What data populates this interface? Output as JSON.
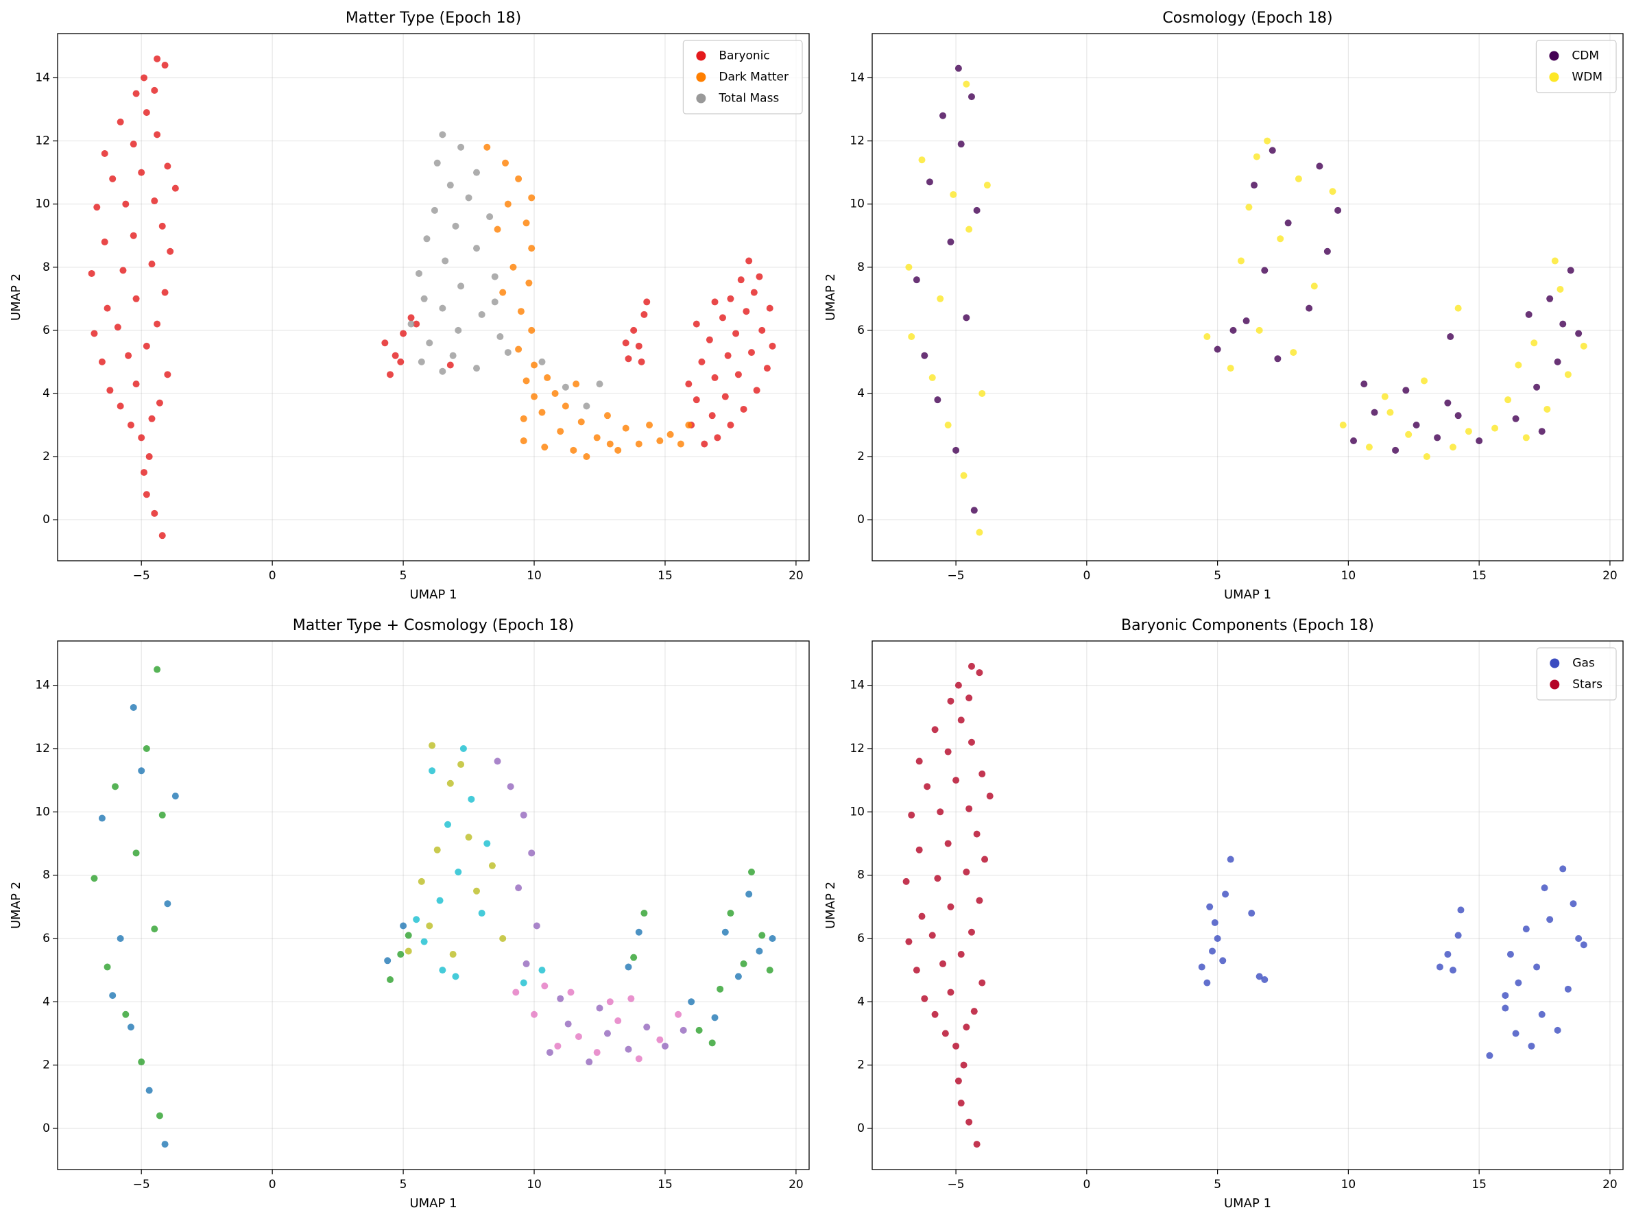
{
  "chart_data": [
    {
      "type": "scatter",
      "title": "Matter Type (Epoch 18)",
      "xlabel": "UMAP 1",
      "ylabel": "UMAP 2",
      "xlim": [
        -8.2,
        20.5
      ],
      "ylim": [
        -1.3,
        15.4
      ],
      "xticks": [
        {
          "value": -5,
          "label": "−5"
        },
        0,
        5,
        10,
        15,
        20
      ],
      "yticks": [
        0,
        2,
        4,
        6,
        8,
        10,
        12,
        14
      ],
      "grid": true,
      "legend": "upper right",
      "series": [
        {
          "name": "Baryonic",
          "color": "#e41a1c",
          "x": [
            -4.2,
            -4.5,
            -4.8,
            -4.9,
            -4.7,
            -5.0,
            -5.4,
            -4.6,
            -5.8,
            -4.3,
            -6.2,
            -5.2,
            -4.0,
            -6.5,
            -5.5,
            -4.8,
            -6.8,
            -5.9,
            -4.4,
            -6.3,
            -5.2,
            -4.1,
            -6.9,
            -5.7,
            -4.6,
            -3.9,
            -6.4,
            -5.3,
            -4.2,
            -6.7,
            -5.6,
            -4.5,
            -3.7,
            -6.1,
            -5.0,
            -4.0,
            -6.4,
            -5.3,
            -4.4,
            -5.8,
            -4.8,
            -5.2,
            -4.5,
            -4.9,
            -4.4,
            -4.1,
            16.5,
            17.0,
            16.0,
            17.5,
            16.8,
            18.0,
            16.2,
            17.3,
            18.5,
            15.9,
            16.9,
            17.8,
            18.9,
            16.4,
            17.4,
            18.3,
            19.1,
            16.7,
            17.7,
            18.7,
            16.2,
            17.2,
            18.1,
            19.0,
            17.5,
            18.4,
            17.9,
            18.6,
            18.2,
            16.9,
            13.6,
            14.0,
            13.8,
            14.2,
            14.3,
            13.5,
            14.1,
            4.5,
            4.7,
            4.3,
            5.0,
            5.3,
            4.9,
            5.5,
            6.8
          ],
          "values": [
            -0.5,
            0.2,
            0.8,
            1.5,
            2.0,
            2.6,
            3.0,
            3.2,
            3.6,
            3.7,
            4.1,
            4.3,
            4.6,
            5.0,
            5.2,
            5.5,
            5.9,
            6.1,
            6.2,
            6.7,
            7.0,
            7.2,
            7.8,
            7.9,
            8.1,
            8.5,
            8.8,
            9.0,
            9.3,
            9.9,
            10.0,
            10.1,
            10.5,
            10.8,
            11.0,
            11.2,
            11.6,
            11.9,
            12.2,
            12.6,
            12.9,
            13.5,
            13.6,
            14.0,
            14.6,
            14.4,
            2.4,
            2.6,
            3.0,
            3.0,
            3.3,
            3.5,
            3.8,
            3.9,
            4.1,
            4.3,
            4.5,
            4.6,
            4.8,
            5.0,
            5.2,
            5.3,
            5.5,
            5.7,
            5.9,
            6.0,
            6.2,
            6.4,
            6.6,
            6.7,
            7.0,
            7.2,
            7.6,
            7.7,
            8.2,
            6.9,
            5.1,
            5.5,
            6.0,
            6.5,
            6.9,
            5.6,
            5.0,
            4.6,
            5.2,
            5.6,
            5.9,
            6.4,
            5.0,
            6.2,
            4.9
          ]
        },
        {
          "name": "Dark Matter",
          "color": "#ff7f00",
          "x": [
            8.2,
            8.9,
            9.4,
            9.9,
            9.0,
            9.7,
            8.6,
            9.9,
            9.2,
            9.8,
            8.8,
            9.5,
            9.9,
            9.4,
            10.0,
            9.7,
            10.5,
            10.0,
            9.6,
            10.3,
            9.6,
            10.4,
            11.0,
            11.2,
            11.8,
            12.0,
            12.4,
            12.8,
            13.2,
            13.5,
            14.0,
            14.4,
            14.8,
            15.2,
            15.6,
            15.9,
            11.5,
            12.9,
            10.8,
            11.6
          ],
          "values": [
            11.8,
            11.3,
            10.8,
            10.2,
            10.0,
            9.4,
            9.2,
            8.6,
            8.0,
            7.5,
            7.2,
            6.6,
            6.0,
            5.4,
            4.9,
            4.4,
            4.5,
            3.9,
            3.2,
            3.4,
            2.5,
            2.3,
            2.8,
            3.6,
            3.1,
            2.0,
            2.6,
            3.3,
            2.2,
            2.9,
            2.4,
            3.0,
            2.5,
            2.7,
            2.4,
            3.0,
            2.2,
            2.4,
            4.0,
            4.3
          ]
        },
        {
          "name": "Total Mass",
          "color": "#999999",
          "x": [
            6.5,
            7.2,
            6.3,
            7.8,
            6.8,
            7.5,
            6.2,
            8.3,
            7.0,
            5.9,
            7.8,
            6.6,
            5.6,
            8.5,
            7.2,
            5.8,
            6.5,
            8.0,
            5.3,
            7.1,
            6.0,
            8.7,
            6.9,
            5.7,
            7.8,
            9.0,
            6.5,
            8.5,
            11.2,
            12.5,
            10.3,
            12.0
          ],
          "values": [
            12.2,
            11.8,
            11.3,
            11.0,
            10.6,
            10.2,
            9.8,
            9.6,
            9.3,
            8.9,
            8.6,
            8.2,
            7.8,
            7.7,
            7.4,
            7.0,
            6.7,
            6.5,
            6.2,
            6.0,
            5.6,
            5.8,
            5.2,
            5.0,
            4.8,
            5.3,
            4.7,
            6.9,
            4.2,
            4.3,
            5.0,
            3.6
          ]
        }
      ]
    },
    {
      "type": "scatter",
      "title": "Cosmology (Epoch 18)",
      "xlabel": "UMAP 1",
      "ylabel": "UMAP 2",
      "xlim": [
        -8.2,
        20.5
      ],
      "ylim": [
        -1.3,
        15.4
      ],
      "xticks": [
        {
          "value": -5,
          "label": "−5"
        },
        0,
        5,
        10,
        15,
        20
      ],
      "yticks": [
        0,
        2,
        4,
        6,
        8,
        10,
        12,
        14
      ],
      "grid": true,
      "legend": "upper right",
      "series": [
        {
          "name": "CDM",
          "color": "#440154",
          "x": [
            -4.3,
            -5.0,
            -5.7,
            -6.2,
            -4.6,
            -6.5,
            -5.2,
            -4.2,
            -6.0,
            -4.8,
            -5.5,
            -4.4,
            -4.9,
            5.0,
            6.1,
            7.3,
            8.5,
            6.8,
            9.2,
            7.7,
            6.4,
            8.9,
            5.6,
            7.1,
            9.6,
            10.2,
            11.0,
            11.8,
            12.6,
            13.4,
            14.2,
            15.0,
            10.6,
            12.2,
            13.8,
            16.4,
            17.2,
            18.0,
            18.8,
            16.9,
            17.7,
            18.5,
            17.4,
            18.2,
            13.9
          ],
          "values": [
            0.3,
            2.2,
            3.8,
            5.2,
            6.4,
            7.6,
            8.8,
            9.8,
            10.7,
            11.9,
            12.8,
            13.4,
            14.3,
            5.4,
            6.3,
            5.1,
            6.7,
            7.9,
            8.5,
            9.4,
            10.6,
            11.2,
            6.0,
            11.7,
            9.8,
            2.5,
            3.4,
            2.2,
            3.0,
            2.6,
            3.3,
            2.5,
            4.3,
            4.1,
            3.7,
            3.2,
            4.2,
            5.0,
            5.9,
            6.5,
            7.0,
            7.9,
            2.8,
            6.2,
            5.8
          ]
        },
        {
          "name": "WDM",
          "color": "#fde725",
          "x": [
            -4.1,
            -4.7,
            -5.3,
            -5.9,
            -6.7,
            -4.0,
            -5.6,
            -6.8,
            -4.5,
            -5.1,
            -6.3,
            -3.8,
            -4.6,
            4.6,
            5.5,
            6.6,
            7.9,
            5.9,
            8.7,
            7.4,
            6.2,
            9.4,
            6.9,
            8.1,
            6.5,
            9.8,
            10.8,
            11.4,
            12.3,
            13.0,
            14.6,
            15.6,
            11.6,
            12.9,
            14.0,
            16.1,
            16.8,
            17.6,
            18.4,
            19.0,
            17.1,
            18.1,
            16.5,
            17.9,
            14.2
          ],
          "values": [
            -0.4,
            1.4,
            3.0,
            4.5,
            5.8,
            4.0,
            7.0,
            8.0,
            9.2,
            10.3,
            11.4,
            10.6,
            13.8,
            5.8,
            4.8,
            6.0,
            5.3,
            8.2,
            7.4,
            8.9,
            9.9,
            10.4,
            12.0,
            10.8,
            11.5,
            3.0,
            2.3,
            3.9,
            2.7,
            2.0,
            2.8,
            2.9,
            3.4,
            4.4,
            2.3,
            3.8,
            2.6,
            3.5,
            4.6,
            5.5,
            5.6,
            7.3,
            4.9,
            8.2,
            6.7
          ]
        }
      ]
    },
    {
      "type": "scatter",
      "title": "Matter Type + Cosmology (Epoch 18)",
      "xlabel": "UMAP 1",
      "ylabel": "UMAP 2",
      "xlim": [
        -8.2,
        20.5
      ],
      "ylim": [
        -1.3,
        15.4
      ],
      "xticks": [
        {
          "value": -5,
          "label": "−5"
        },
        0,
        5,
        10,
        15,
        20
      ],
      "yticks": [
        0,
        2,
        4,
        6,
        8,
        10,
        12,
        14
      ],
      "grid": true,
      "series": [
        {
          "color": "#2ca02c",
          "x": [
            -4.3,
            -5.0,
            -5.6,
            -6.3,
            -4.5,
            -6.8,
            -5.2,
            -4.2,
            -6.0,
            -4.8,
            -4.4,
            4.5,
            4.9,
            5.2,
            13.8,
            14.2,
            16.3,
            17.1,
            18.0,
            18.7,
            17.5,
            18.3,
            16.8,
            19.0
          ],
          "values": [
            0.4,
            2.1,
            3.6,
            5.1,
            6.3,
            7.9,
            8.7,
            9.9,
            10.8,
            12.0,
            14.5,
            4.7,
            5.5,
            6.1,
            5.4,
            6.8,
            3.1,
            4.4,
            5.2,
            6.1,
            6.8,
            8.1,
            2.7,
            5.0
          ]
        },
        {
          "color": "#1f77b4",
          "x": [
            -4.1,
            -4.7,
            -5.4,
            -6.1,
            -5.8,
            -4.0,
            -6.5,
            -5.0,
            -3.7,
            -5.3,
            4.4,
            5.0,
            13.6,
            14.0,
            16.0,
            16.9,
            17.8,
            18.6,
            17.3,
            18.2,
            19.1
          ],
          "values": [
            -0.5,
            1.2,
            3.2,
            4.2,
            6.0,
            7.1,
            9.8,
            11.3,
            10.5,
            13.3,
            5.3,
            6.4,
            5.1,
            6.2,
            4.0,
            3.5,
            4.8,
            5.6,
            6.2,
            7.4,
            6.0
          ]
        },
        {
          "color": "#17becf",
          "x": [
            5.8,
            6.4,
            7.1,
            6.7,
            7.6,
            6.1,
            7.3,
            8.0,
            6.5,
            5.5,
            7.0,
            9.6,
            10.3,
            8.2
          ],
          "values": [
            5.9,
            7.2,
            8.1,
            9.6,
            10.4,
            11.3,
            12.0,
            6.8,
            5.0,
            6.6,
            4.8,
            4.6,
            5.0,
            9.0
          ]
        },
        {
          "color": "#bcbd22",
          "x": [
            5.2,
            6.0,
            6.9,
            7.8,
            6.3,
            7.5,
            5.7,
            8.4,
            6.8,
            7.2,
            8.8,
            6.1
          ],
          "values": [
            5.6,
            6.4,
            5.5,
            7.5,
            8.8,
            9.2,
            7.8,
            8.3,
            10.9,
            11.5,
            6.0,
            12.1
          ]
        },
        {
          "color": "#9467bd",
          "x": [
            8.6,
            9.1,
            9.6,
            9.9,
            9.4,
            10.1,
            9.7,
            10.6,
            11.3,
            12.1,
            12.8,
            13.6,
            14.3,
            15.0,
            15.7,
            11.0,
            12.5
          ],
          "values": [
            11.6,
            10.8,
            9.9,
            8.7,
            7.6,
            6.4,
            5.2,
            2.4,
            3.3,
            2.1,
            3.0,
            2.5,
            3.2,
            2.6,
            3.1,
            4.1,
            3.8
          ]
        },
        {
          "color": "#e377c2",
          "x": [
            9.3,
            10.0,
            10.9,
            11.7,
            12.4,
            13.2,
            14.0,
            14.8,
            15.5,
            11.4,
            12.9,
            13.7,
            10.4
          ],
          "values": [
            4.3,
            3.6,
            2.6,
            2.9,
            2.4,
            3.4,
            2.2,
            2.8,
            3.6,
            4.3,
            4.0,
            4.1,
            4.5
          ]
        }
      ]
    },
    {
      "type": "scatter",
      "title": "Baryonic Components (Epoch 18)",
      "xlabel": "UMAP 1",
      "ylabel": "UMAP 2",
      "xlim": [
        -8.2,
        20.5
      ],
      "ylim": [
        -1.3,
        15.4
      ],
      "xticks": [
        {
          "value": -5,
          "label": "−5"
        },
        0,
        5,
        10,
        15,
        20
      ],
      "yticks": [
        0,
        2,
        4,
        6,
        8,
        10,
        12,
        14
      ],
      "grid": true,
      "legend": "upper right",
      "series": [
        {
          "name": "Gas",
          "color": "#3b4cc0",
          "x": [
            4.4,
            4.6,
            4.8,
            5.0,
            4.7,
            5.3,
            5.5,
            4.9,
            6.3,
            6.6,
            6.8,
            5.2,
            13.5,
            13.8,
            14.2,
            14.0,
            14.3,
            15.4,
            16.0,
            16.4,
            17.0,
            16.5,
            17.4,
            18.0,
            16.2,
            17.2,
            18.4,
            19.0,
            16.8,
            17.7,
            18.6,
            17.5,
            18.2,
            18.8,
            16.0
          ],
          "values": [
            5.1,
            4.6,
            5.6,
            6.0,
            7.0,
            7.4,
            8.5,
            6.5,
            6.8,
            4.8,
            4.7,
            5.3,
            5.1,
            5.5,
            6.1,
            5.0,
            6.9,
            2.3,
            3.8,
            3.0,
            2.6,
            4.6,
            3.6,
            3.1,
            5.5,
            5.1,
            4.4,
            5.8,
            6.3,
            6.6,
            7.1,
            7.6,
            8.2,
            6.0,
            4.2
          ]
        },
        {
          "name": "Stars",
          "color": "#b40426",
          "x": [
            -4.2,
            -4.5,
            -4.8,
            -4.9,
            -4.7,
            -5.0,
            -5.4,
            -4.6,
            -5.8,
            -4.3,
            -6.2,
            -5.2,
            -4.0,
            -6.5,
            -5.5,
            -4.8,
            -6.8,
            -5.9,
            -4.4,
            -6.3,
            -5.2,
            -4.1,
            -6.9,
            -5.7,
            -4.6,
            -3.9,
            -6.4,
            -5.3,
            -4.2,
            -6.7,
            -5.6,
            -4.5,
            -3.7,
            -6.1,
            -5.0,
            -4.0,
            -6.4,
            -5.3,
            -4.4,
            -5.8,
            -4.8,
            -5.2,
            -4.5,
            -4.9,
            -4.4,
            -4.1
          ],
          "values": [
            -0.5,
            0.2,
            0.8,
            1.5,
            2.0,
            2.6,
            3.0,
            3.2,
            3.6,
            3.7,
            4.1,
            4.3,
            4.6,
            5.0,
            5.2,
            5.5,
            5.9,
            6.1,
            6.2,
            6.7,
            7.0,
            7.2,
            7.8,
            7.9,
            8.1,
            8.5,
            8.8,
            9.0,
            9.3,
            9.9,
            10.0,
            10.1,
            10.5,
            10.8,
            11.0,
            11.2,
            11.6,
            11.9,
            12.2,
            12.6,
            12.9,
            13.5,
            13.6,
            14.0,
            14.6,
            14.4
          ]
        }
      ]
    }
  ]
}
